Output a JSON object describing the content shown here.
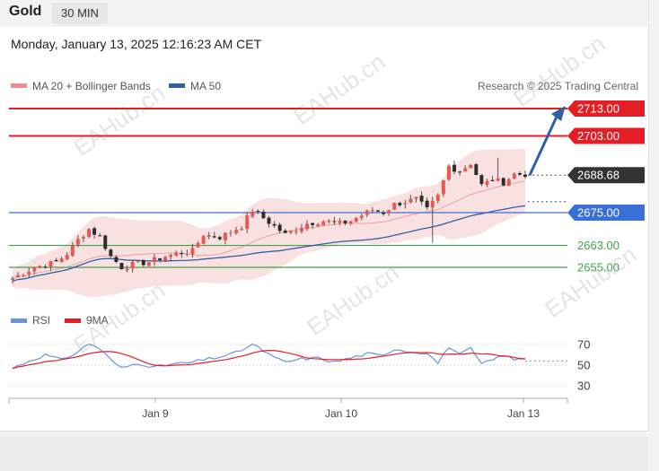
{
  "header": {
    "symbol": "Gold",
    "timeframe": "30 MIN"
  },
  "datetime": "Monday, January 13, 2025 12:16:23 AM CET",
  "credit": "Research © 2025 Trading Central",
  "watermark": "EAHub.cn",
  "colors": {
    "resistance": "#e31e24",
    "support_blue": "#3a6fd8",
    "support_green": "#3fa34d",
    "candle_up": "#e8594f",
    "candle_down": "#2b2b2b",
    "bollinger": "#f6c9c9",
    "ma50": "#2f5fa6",
    "rsi": "#6d92de",
    "ma9": "#e31e24",
    "arrow": "#2f5fa6",
    "price_tag": "#333333"
  },
  "chart_data": [
    {
      "type": "candlestick",
      "legend": [
        {
          "name": "MA 20 + Bollinger Bands",
          "color": "#f08c8c",
          "icon": "legend-swatch-icon"
        },
        {
          "name": "MA 50",
          "color": "#2f5fa6",
          "icon": "legend-swatch-icon"
        }
      ],
      "x_ticks": [
        "Jan 9",
        "Jan 10",
        "Jan 13"
      ],
      "ylim": [
        2643,
        2718
      ],
      "current_price": "2688.68",
      "levels": [
        {
          "value": 2713.0,
          "label": "2713.00",
          "kind": "resistance",
          "tag": "box"
        },
        {
          "value": 2703.0,
          "label": "2703.00",
          "kind": "resistance",
          "tag": "box"
        },
        {
          "value": 2675.0,
          "label": "2675.00",
          "kind": "support_blue",
          "tag": "box"
        },
        {
          "value": 2663.0,
          "label": "2663.00",
          "kind": "support_green",
          "tag": "text"
        },
        {
          "value": 2655.0,
          "label": "2655.00",
          "kind": "support_green",
          "tag": "text"
        }
      ],
      "projection": {
        "from": 2689,
        "to": 2713,
        "direction": "up"
      },
      "anchors": [
        [
          0,
          2651
        ],
        [
          2,
          2653
        ],
        [
          4,
          2655
        ],
        [
          6,
          2656
        ],
        [
          8,
          2657
        ],
        [
          10,
          2660
        ],
        [
          12,
          2665
        ],
        [
          14,
          2669
        ],
        [
          16,
          2666
        ],
        [
          18,
          2659
        ],
        [
          20,
          2655
        ],
        [
          22,
          2656
        ],
        [
          25,
          2657
        ],
        [
          28,
          2659
        ],
        [
          30,
          2660
        ],
        [
          33,
          2661
        ],
        [
          35,
          2667
        ],
        [
          38,
          2666
        ],
        [
          40,
          2668
        ],
        [
          42,
          2670
        ],
        [
          44,
          2676
        ],
        [
          46,
          2673
        ],
        [
          48,
          2670
        ],
        [
          50,
          2667
        ],
        [
          52,
          2669
        ],
        [
          54,
          2671
        ],
        [
          57,
          2672
        ],
        [
          60,
          2671
        ],
        [
          62,
          2672
        ],
        [
          64,
          2674
        ],
        [
          66,
          2676
        ],
        [
          68,
          2675
        ],
        [
          70,
          2678
        ],
        [
          72,
          2679
        ],
        [
          74,
          2680
        ],
        [
          76,
          2676
        ],
        [
          78,
          2681
        ],
        [
          80,
          2692
        ],
        [
          82,
          2690
        ],
        [
          84,
          2693
        ],
        [
          86,
          2685
        ],
        [
          88,
          2687
        ],
        [
          90,
          2686
        ],
        [
          92,
          2689
        ],
        [
          94,
          2689
        ]
      ],
      "spikes": [
        {
          "index": 77,
          "low": 2664
        },
        {
          "index": 89,
          "high": 2695
        }
      ]
    },
    {
      "type": "line",
      "legend": [
        {
          "name": "RSI",
          "color": "#6d92de",
          "icon": "legend-swatch-icon"
        },
        {
          "name": "9MA",
          "color": "#e31e24",
          "icon": "legend-swatch-icon"
        }
      ],
      "y_ticks": [
        70,
        50,
        30
      ],
      "ylim": [
        20,
        82
      ],
      "rsi_anchors": [
        [
          0,
          47
        ],
        [
          3,
          54
        ],
        [
          6,
          60
        ],
        [
          9,
          55
        ],
        [
          12,
          63
        ],
        [
          14,
          71
        ],
        [
          16,
          66
        ],
        [
          18,
          55
        ],
        [
          20,
          47
        ],
        [
          23,
          52
        ],
        [
          26,
          48
        ],
        [
          29,
          51
        ],
        [
          32,
          52
        ],
        [
          35,
          55
        ],
        [
          38,
          58
        ],
        [
          41,
          62
        ],
        [
          44,
          70
        ],
        [
          46,
          64
        ],
        [
          48,
          57
        ],
        [
          50,
          53
        ],
        [
          53,
          56
        ],
        [
          56,
          57
        ],
        [
          59,
          53
        ],
        [
          62,
          57
        ],
        [
          65,
          61
        ],
        [
          68,
          59
        ],
        [
          70,
          66
        ],
        [
          73,
          63
        ],
        [
          76,
          62
        ],
        [
          78,
          52
        ],
        [
          80,
          68
        ],
        [
          82,
          60
        ],
        [
          84,
          66
        ],
        [
          86,
          51
        ],
        [
          88,
          55
        ],
        [
          90,
          60
        ],
        [
          92,
          55
        ],
        [
          94,
          57
        ]
      ]
    }
  ]
}
